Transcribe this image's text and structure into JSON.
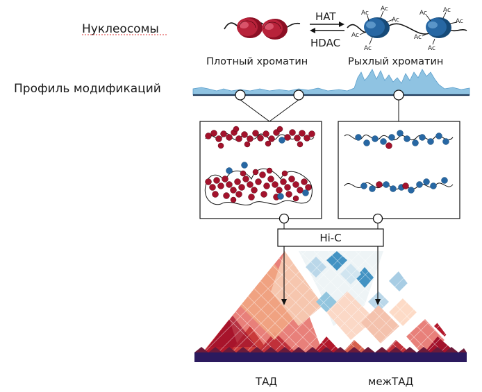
{
  "rows": {
    "nucleosomes_label": "Нуклеосомы",
    "profile_label": "Профиль модификаций"
  },
  "top": {
    "hat_label": "HAT",
    "hdac_label": "HDAC",
    "ac_label": "Ac",
    "dense_chromatin_label": "Плотный хроматин",
    "loose_chromatin_label": "Рыхлый хроматин"
  },
  "hic": {
    "box_label": "Hi-C",
    "tad_label": "ТАД",
    "intertad_label": "межТАД"
  },
  "colors": {
    "dense_red": "#a3122c",
    "loose_blue": "#1f5f95",
    "profile_fill": "#8fc3e2",
    "tad_red": "#b2182b",
    "weak_blue": "#4393c3"
  }
}
